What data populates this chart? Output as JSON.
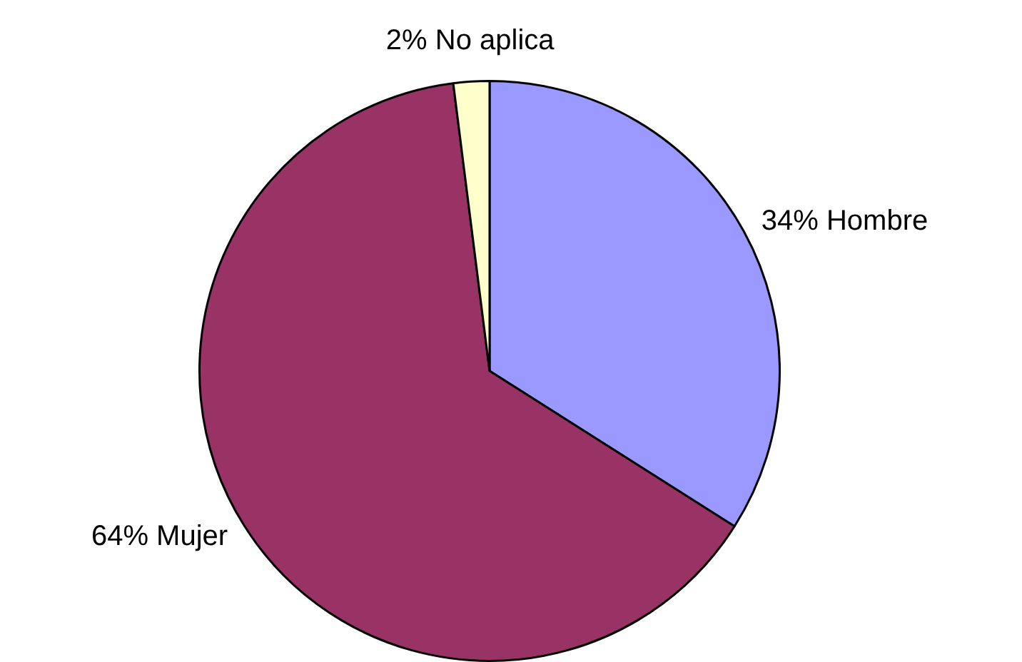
{
  "chart_data": {
    "type": "pie",
    "categories": [
      "Hombre",
      "Mujer",
      "No aplica"
    ],
    "values": [
      34,
      64,
      2
    ],
    "value_labels": [
      "34%",
      "64%",
      "2%"
    ],
    "colors": [
      "#9999ff",
      "#993366",
      "#ffffcc"
    ],
    "legend": false
  }
}
